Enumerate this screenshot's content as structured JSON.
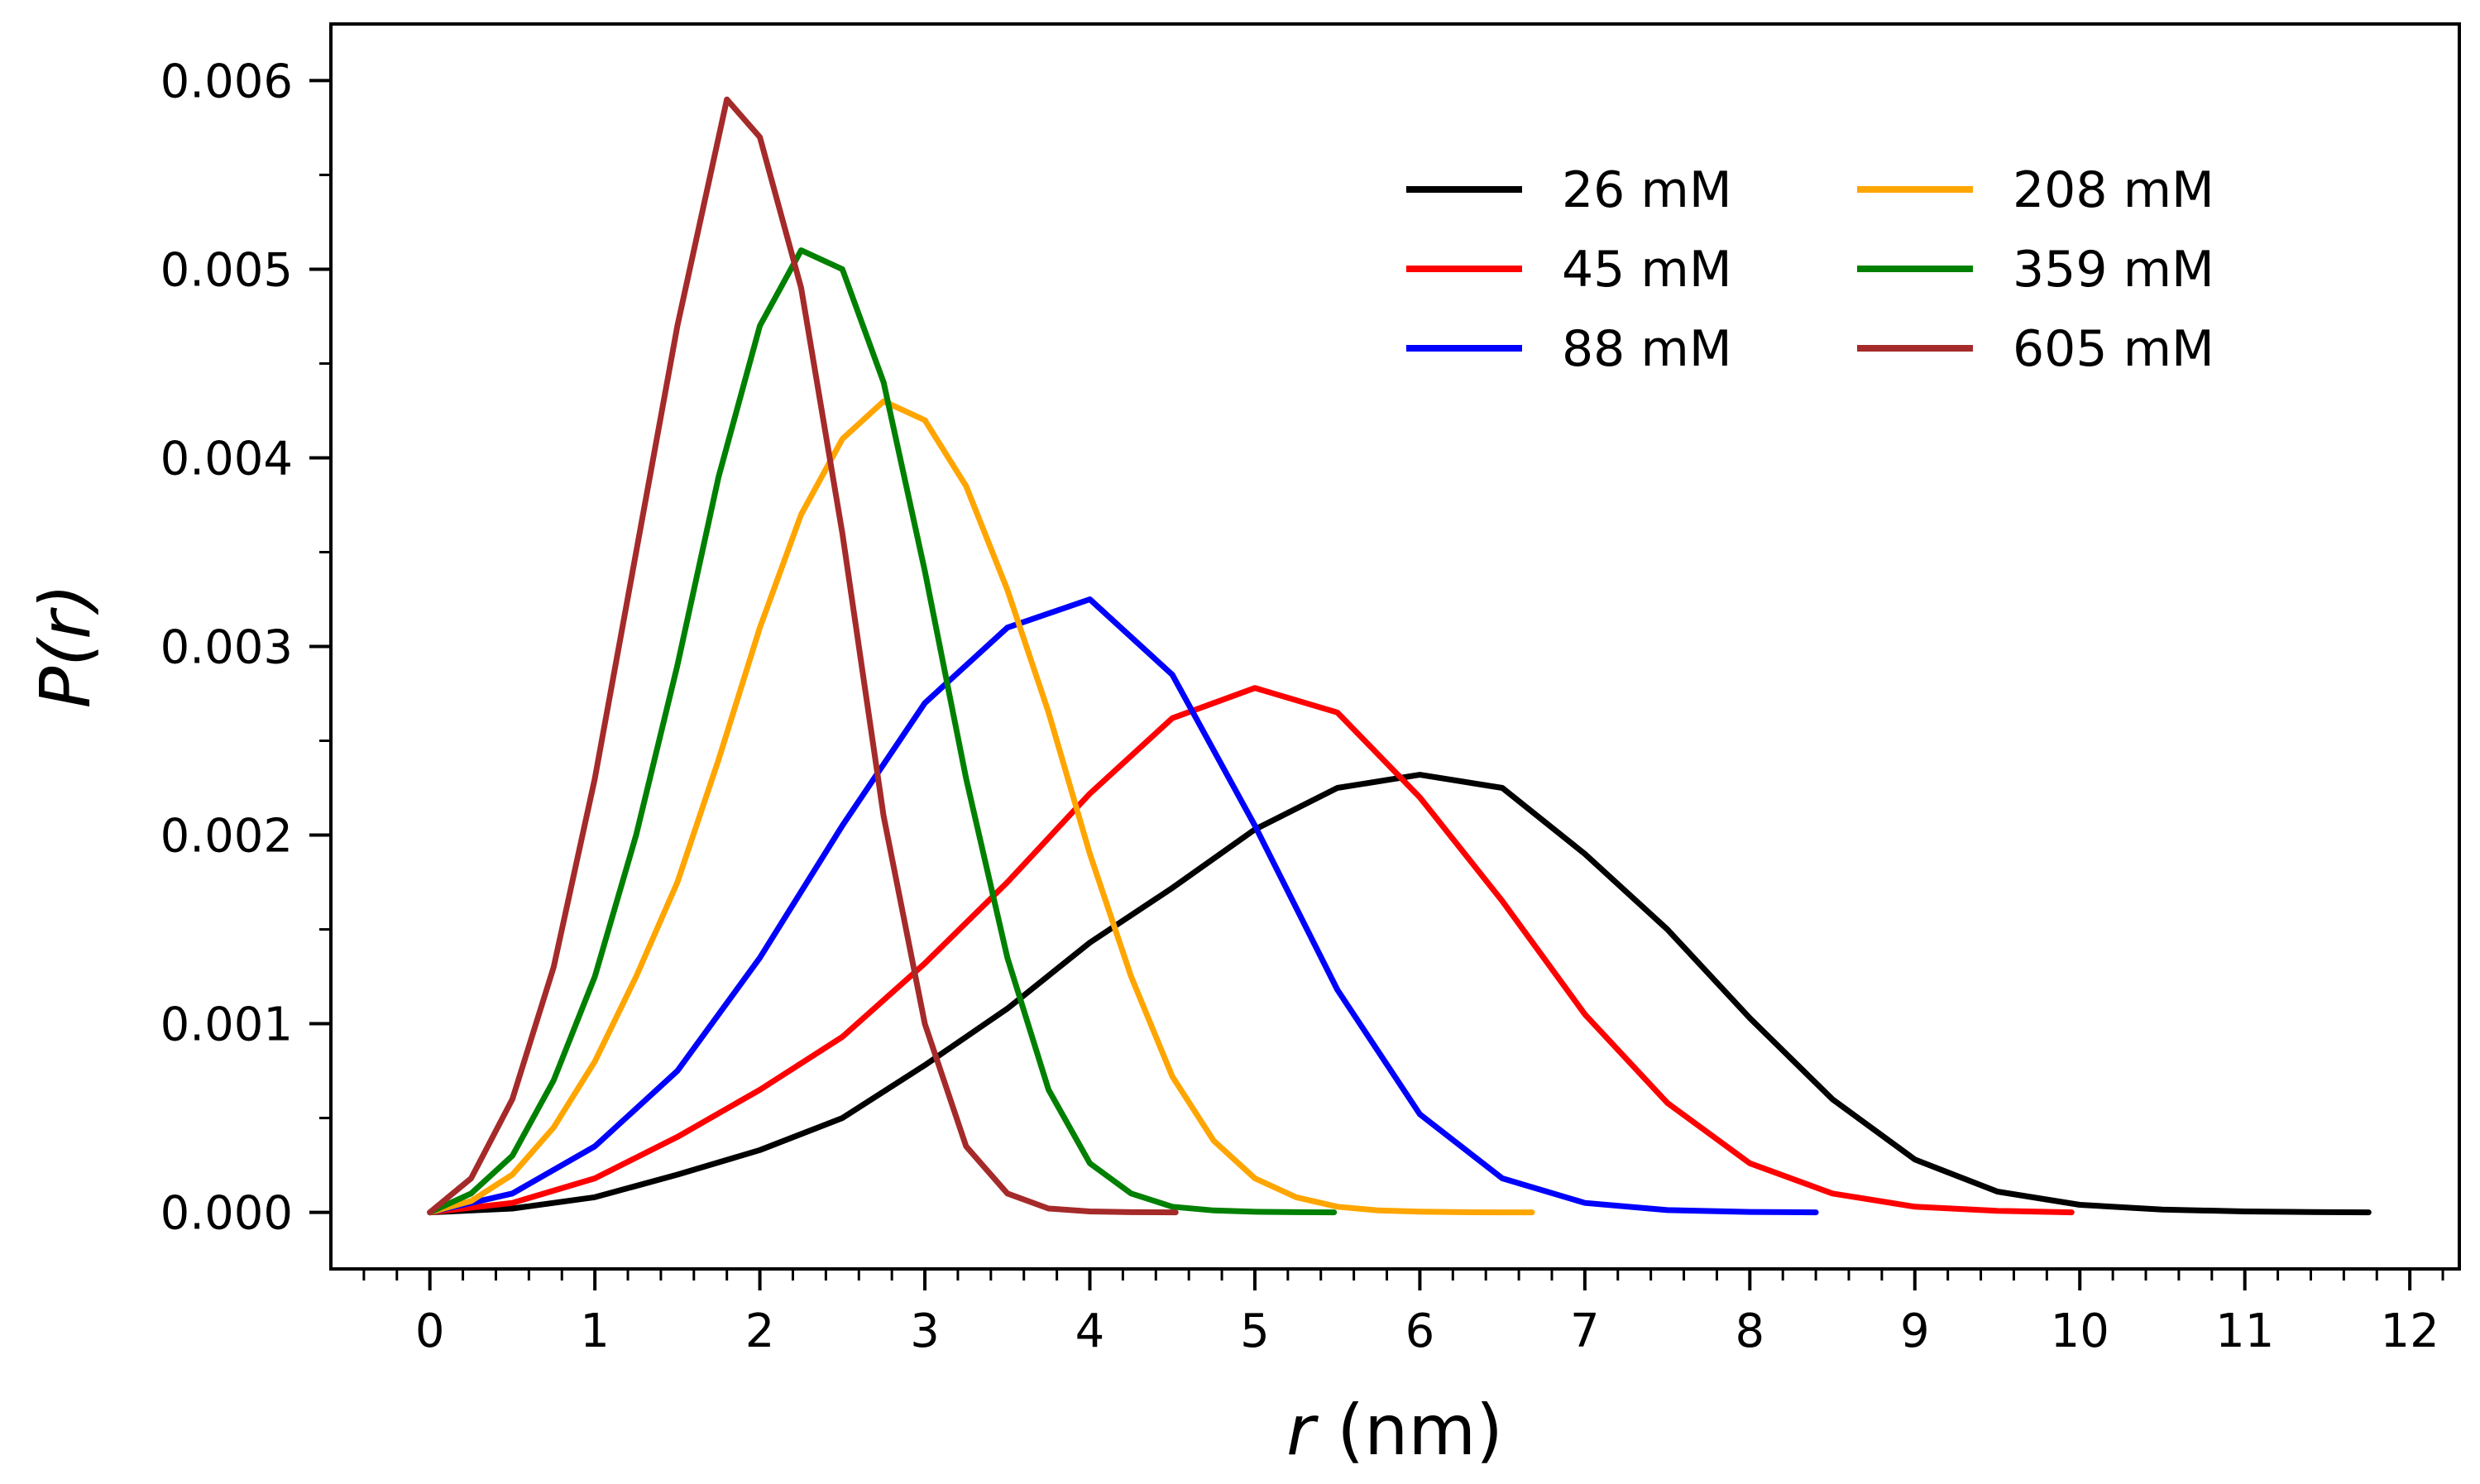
{
  "chart_data": {
    "type": "line",
    "title": "",
    "xlabel_var": "r",
    "xlabel_unit": " (nm)",
    "ylabel_func": "P(",
    "ylabel_var": "r",
    "ylabel_close": ")",
    "xlim": [
      -0.6,
      12.3
    ],
    "ylim": [
      -0.0003,
      0.0063
    ],
    "x_ticks": [
      "0",
      "1",
      "2",
      "3",
      "4",
      "5",
      "6",
      "7",
      "8",
      "9",
      "10",
      "11",
      "12"
    ],
    "x_tick_values": [
      0,
      1,
      2,
      3,
      4,
      5,
      6,
      7,
      8,
      9,
      10,
      11,
      12
    ],
    "x_minor_step": 0.2,
    "y_ticks": [
      "0.000",
      "0.001",
      "0.002",
      "0.003",
      "0.004",
      "0.005",
      "0.006"
    ],
    "y_tick_values": [
      0,
      0.001,
      0.002,
      0.003,
      0.004,
      0.005,
      0.006
    ],
    "y_minor_step": 0.0005,
    "grid": false,
    "legend_position": "top-right",
    "legend_columns": 2,
    "series": [
      {
        "name": "26 mM",
        "color": "#000000",
        "x": [
          0,
          0.5,
          1,
          1.5,
          2,
          2.5,
          3,
          3.5,
          4,
          4.5,
          5,
          5.5,
          6,
          6.5,
          7,
          7.5,
          8,
          8.5,
          9,
          9.5,
          10,
          10.5,
          11,
          11.5,
          11.75
        ],
        "y": [
          0,
          2e-05,
          8e-05,
          0.0002,
          0.00033,
          0.0005,
          0.00078,
          0.00108,
          0.00143,
          0.00172,
          0.00203,
          0.00225,
          0.00232,
          0.00225,
          0.0019,
          0.0015,
          0.00103,
          0.0006,
          0.00028,
          0.00011,
          4e-05,
          1.5e-05,
          5e-06,
          1e-06,
          0
        ]
      },
      {
        "name": "45 mM",
        "color": "#ff0000",
        "x": [
          0,
          0.5,
          1,
          1.5,
          2,
          2.5,
          3,
          3.5,
          4,
          4.5,
          5,
          5.5,
          6,
          6.5,
          7,
          7.5,
          8,
          8.5,
          9,
          9.5,
          9.95
        ],
        "y": [
          0,
          5e-05,
          0.00018,
          0.0004,
          0.00065,
          0.00093,
          0.00132,
          0.00175,
          0.00222,
          0.00262,
          0.00278,
          0.00265,
          0.0022,
          0.00165,
          0.00105,
          0.00058,
          0.00026,
          0.0001,
          3e-05,
          8e-06,
          0
        ]
      },
      {
        "name": "88 mM",
        "color": "#0000ff",
        "x": [
          0,
          0.5,
          1,
          1.5,
          2,
          2.5,
          3,
          3.5,
          4,
          4.5,
          5,
          5.5,
          6,
          6.5,
          7,
          7.5,
          8,
          8.4
        ],
        "y": [
          0,
          0.0001,
          0.00035,
          0.00075,
          0.00135,
          0.00205,
          0.0027,
          0.0031,
          0.00325,
          0.00285,
          0.00205,
          0.00118,
          0.00052,
          0.00018,
          5e-05,
          1.2e-05,
          2e-06,
          0
        ]
      },
      {
        "name": "208 mM",
        "color": "#ffa500",
        "x": [
          0,
          0.25,
          0.5,
          0.75,
          1,
          1.25,
          1.5,
          1.75,
          2,
          2.25,
          2.5,
          2.75,
          3,
          3.25,
          3.5,
          3.75,
          4,
          4.25,
          4.5,
          4.75,
          5,
          5.25,
          5.5,
          5.75,
          6,
          6.25,
          6.5,
          6.68
        ],
        "y": [
          0,
          6e-05,
          0.0002,
          0.00045,
          0.0008,
          0.00125,
          0.00175,
          0.0024,
          0.0031,
          0.0037,
          0.0041,
          0.0043,
          0.0042,
          0.00385,
          0.0033,
          0.00265,
          0.0019,
          0.00125,
          0.00072,
          0.00038,
          0.00018,
          8e-05,
          3e-05,
          1e-05,
          4e-06,
          1e-06,
          0,
          0
        ]
      },
      {
        "name": "359 mM",
        "color": "#008000",
        "x": [
          0,
          0.25,
          0.5,
          0.75,
          1,
          1.25,
          1.5,
          1.75,
          2,
          2.25,
          2.5,
          2.75,
          3,
          3.25,
          3.5,
          3.75,
          4,
          4.25,
          4.5,
          4.75,
          5,
          5.25,
          5.48
        ],
        "y": [
          0,
          0.0001,
          0.0003,
          0.0007,
          0.00125,
          0.002,
          0.0029,
          0.0039,
          0.0047,
          0.0051,
          0.005,
          0.0044,
          0.0034,
          0.0023,
          0.00135,
          0.00065,
          0.00026,
          0.0001,
          3e-05,
          1e-05,
          3e-06,
          1e-06,
          0
        ]
      },
      {
        "name": "605 mM",
        "color": "#a52a2a",
        "x": [
          0,
          0.25,
          0.5,
          0.75,
          1,
          1.25,
          1.5,
          1.8,
          2,
          2.25,
          2.5,
          2.75,
          3,
          3.25,
          3.5,
          3.75,
          4,
          4.25,
          4.52
        ],
        "y": [
          0,
          0.00018,
          0.0006,
          0.0013,
          0.0023,
          0.0035,
          0.0047,
          0.0059,
          0.0057,
          0.0049,
          0.0036,
          0.0021,
          0.001,
          0.00035,
          0.0001,
          2e-05,
          5e-06,
          1e-06,
          0
        ]
      }
    ]
  }
}
